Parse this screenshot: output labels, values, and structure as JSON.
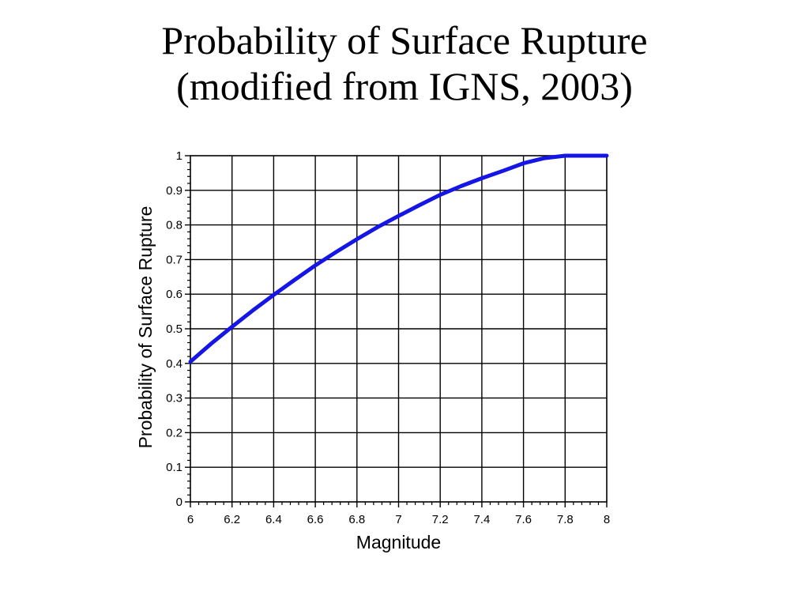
{
  "slide": {
    "title_line1": "Probability of Surface Rupture",
    "title_line2": "(modified from IGNS, 2003)"
  },
  "chart_data": {
    "type": "line",
    "title": "",
    "xlabel": "Magnitude",
    "ylabel": "Probability of Surface Rupture",
    "xlim": [
      6,
      8
    ],
    "ylim": [
      0,
      1
    ],
    "xticks": [
      "6",
      "6.2",
      "6.4",
      "6.6",
      "6.8",
      "7",
      "7.2",
      "7.4",
      "7.6",
      "7.8",
      "8"
    ],
    "yticks": [
      "0",
      "0.1",
      "0.2",
      "0.3",
      "0.4",
      "0.5",
      "0.6",
      "0.7",
      "0.8",
      "0.9",
      "1"
    ],
    "grid": true,
    "line_color": "#1515e6",
    "series": [
      {
        "x": [
          6.0,
          6.1,
          6.2,
          6.3,
          6.4,
          6.5,
          6.6,
          6.7,
          6.8,
          6.9,
          7.0,
          7.1,
          7.2,
          7.3,
          7.4,
          7.5,
          7.6,
          7.7,
          7.8,
          7.9,
          8.0
        ],
        "y": [
          0.405,
          0.457,
          0.506,
          0.553,
          0.598,
          0.641,
          0.683,
          0.722,
          0.759,
          0.794,
          0.826,
          0.857,
          0.887,
          0.912,
          0.935,
          0.956,
          0.978,
          0.993,
          1.0,
          1.0,
          1.0
        ]
      }
    ]
  }
}
